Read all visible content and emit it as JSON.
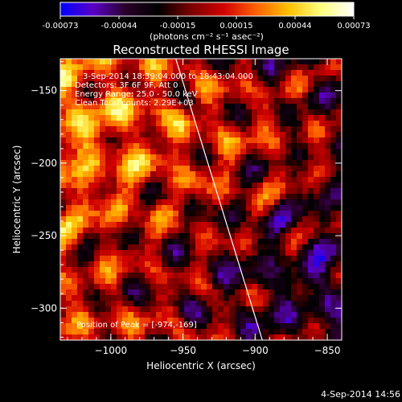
{
  "colorbar": {
    "ticks": [
      "-0.00073",
      "-0.00044",
      "-0.00015",
      "0.00015",
      "0.00044",
      "0.00073"
    ],
    "units_label": "(photons cm⁻² s⁻¹ asec⁻²)",
    "colormap": [
      "#0000ff",
      "#5a00c8",
      "#2a002a",
      "#000000",
      "#7a0000",
      "#d00000",
      "#ff6000",
      "#ffc000",
      "#ffff80",
      "#ffffff"
    ]
  },
  "plot": {
    "title": "Reconstructed RHESSI Image",
    "xlabel": "Heliocentric X (arcsec)",
    "ylabel": "Heliocentric Y (arcsec)",
    "xlim": [
      -1035,
      -840
    ],
    "ylim": [
      -322,
      -128
    ],
    "xticks": [
      {
        "value": -1000,
        "label": "−1000"
      },
      {
        "value": -950,
        "label": "−950"
      },
      {
        "value": -900,
        "label": "−900"
      },
      {
        "value": -850,
        "label": "−850"
      }
    ],
    "yticks": [
      {
        "value": -150,
        "label": "−150"
      },
      {
        "value": -200,
        "label": "−200"
      },
      {
        "value": -250,
        "label": "−250"
      },
      {
        "value": -300,
        "label": "−300"
      }
    ],
    "info_lines": [
      "3-Sep-2014 18:39:04.000 to 18:43:04.000",
      "Detectors: 3F 6F 9F, Att 0",
      "Energy Range: 25.0 - 50.0 keV",
      "Clean     Total counts: 2.29E+03"
    ],
    "peak_label": "Position of Peak = [-974,-169]",
    "limb": [
      [
        -955,
        -128
      ],
      [
        -895,
        -322
      ]
    ]
  },
  "timestamp": "4-Sep-2014 14:56"
}
